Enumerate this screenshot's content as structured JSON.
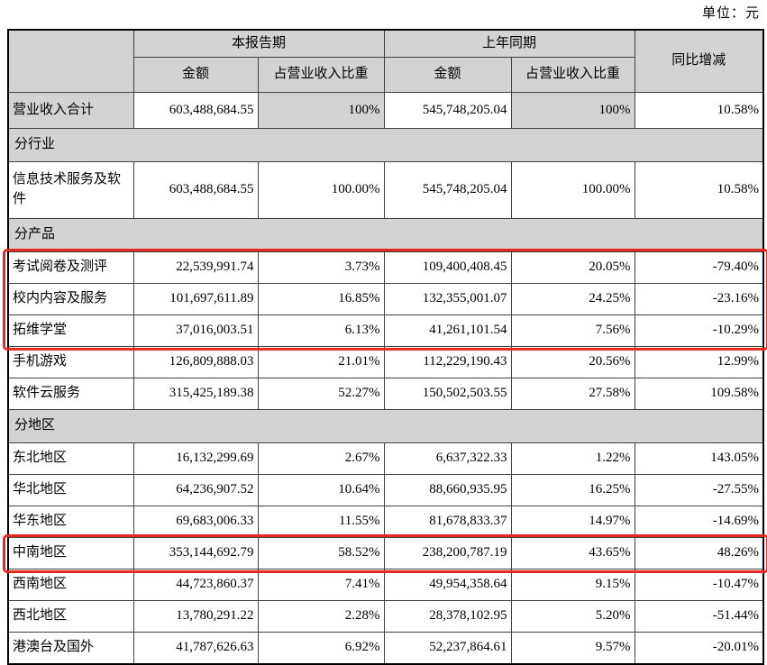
{
  "page": {
    "unit_label": "单位：元"
  },
  "table": {
    "header": {
      "current_period": "本报告期",
      "prior_period": "上年同期",
      "yoy": "同比增减",
      "amount": "金额",
      "proportion": "占营业收入比重"
    },
    "rows": [
      {
        "type": "data",
        "label": "营业收入合计",
        "cells": [
          "603,488,684.55",
          "100%",
          "545,748,205.04",
          "100%",
          "10.58%"
        ],
        "shaded": true,
        "first": true
      },
      {
        "type": "section",
        "label": "分行业"
      },
      {
        "type": "data",
        "label": "信息技术服务及软件",
        "cells": [
          "603,488,684.55",
          "100.00%",
          "545,748,205.04",
          "100.00%",
          "10.58%"
        ],
        "tall": true
      },
      {
        "type": "section",
        "label": "分产品"
      },
      {
        "type": "data",
        "label": "考试阅卷及测评",
        "cells": [
          "22,539,991.74",
          "3.73%",
          "109,400,408.45",
          "20.05%",
          "-79.40%"
        ],
        "highlight_group": "products"
      },
      {
        "type": "data",
        "label": "校内内容及服务",
        "cells": [
          "101,697,611.89",
          "16.85%",
          "132,355,001.07",
          "24.25%",
          "-23.16%"
        ],
        "highlight_group": "products"
      },
      {
        "type": "data",
        "label": "拓维学堂",
        "cells": [
          "37,016,003.51",
          "6.13%",
          "41,261,101.54",
          "7.56%",
          "-10.29%"
        ],
        "highlight_group": "products"
      },
      {
        "type": "data",
        "label": "手机游戏",
        "cells": [
          "126,809,888.03",
          "21.01%",
          "112,229,190.43",
          "20.56%",
          "12.99%"
        ]
      },
      {
        "type": "data",
        "label": "软件云服务",
        "cells": [
          "315,425,189.38",
          "52.27%",
          "150,502,503.55",
          "27.58%",
          "109.58%"
        ]
      },
      {
        "type": "section",
        "label": "分地区"
      },
      {
        "type": "data",
        "label": "东北地区",
        "cells": [
          "16,132,299.69",
          "2.67%",
          "6,637,322.33",
          "1.22%",
          "143.05%"
        ]
      },
      {
        "type": "data",
        "label": "华北地区",
        "cells": [
          "64,236,907.52",
          "10.64%",
          "88,660,935.95",
          "16.25%",
          "-27.55%"
        ]
      },
      {
        "type": "data",
        "label": "华东地区",
        "cells": [
          "69,683,006.33",
          "11.55%",
          "81,678,833.37",
          "14.97%",
          "-14.69%"
        ]
      },
      {
        "type": "data",
        "label": "中南地区",
        "cells": [
          "353,144,692.79",
          "58.52%",
          "238,200,787.19",
          "43.65%",
          "48.26%"
        ],
        "highlight_group": "central"
      },
      {
        "type": "data",
        "label": "西南地区",
        "cells": [
          "44,723,860.37",
          "7.41%",
          "49,954,358.64",
          "9.15%",
          "-10.47%"
        ]
      },
      {
        "type": "data",
        "label": "西北地区",
        "cells": [
          "13,780,291.22",
          "2.28%",
          "28,378,102.95",
          "5.20%",
          "-51.44%"
        ]
      },
      {
        "type": "data",
        "label": "港澳台及国外",
        "cells": [
          "41,787,626.63",
          "6.92%",
          "52,237,864.61",
          "9.57%",
          "-20.01%"
        ]
      }
    ],
    "highlights": [
      {
        "group": "products",
        "name": "highlight-box-products"
      },
      {
        "group": "central",
        "name": "highlight-box-central-region"
      }
    ],
    "colors": {
      "header_bg": "#d3d3d3",
      "highlight_border": "#e8291f",
      "grid_border": "#404040",
      "outer_border": "#000000"
    }
  }
}
